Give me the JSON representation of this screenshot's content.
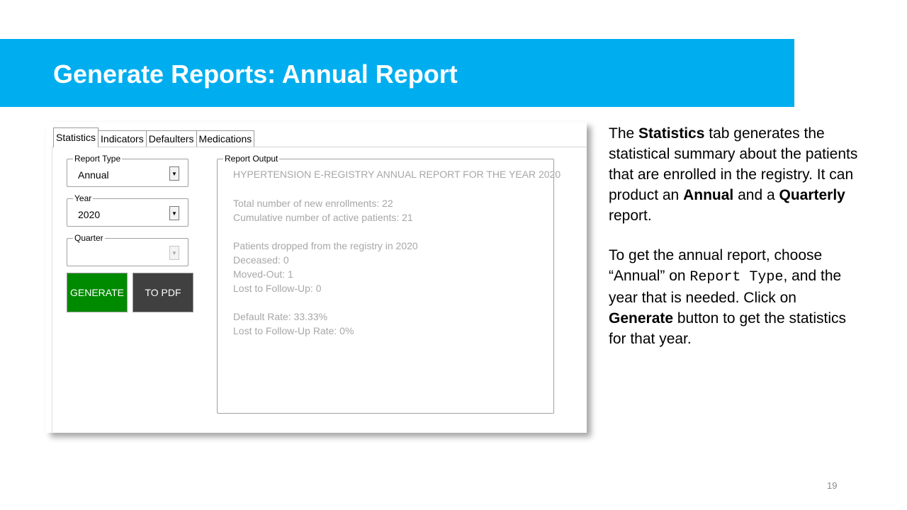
{
  "slide": {
    "title": "Generate Reports: Annual Report",
    "page_number": "19",
    "accent_color": "#00AEEF"
  },
  "app": {
    "tabs": [
      "Statistics",
      "Indicators",
      "Defaulters",
      "Medications"
    ],
    "active_tab": "Statistics",
    "report_type": {
      "label": "Report Type",
      "value": "Annual"
    },
    "year": {
      "label": "Year",
      "value": "2020"
    },
    "quarter": {
      "label": "Quarter",
      "value": ""
    },
    "buttons": {
      "generate": {
        "label": "GENERATE",
        "color": "#008A00"
      },
      "to_pdf": {
        "label": "TO PDF",
        "color": "#404040"
      }
    },
    "report_output": {
      "label": "Report Output",
      "lines": [
        "HYPERTENSION E-REGISTRY ANNUAL REPORT FOR THE YEAR 2020",
        "Total number of new enrollments: 22",
        "Cumulative number of active patients: 21",
        "Patients dropped from the registry in 2020",
        "Deceased: 0",
        "Moved-Out: 1",
        "Lost to Follow-Up: 0",
        "Default Rate: 33.33%",
        "Lost to Follow-Up Rate: 0%"
      ]
    }
  },
  "description": {
    "p1": {
      "t1": "The ",
      "b1": "Statistics",
      "t2": " tab generates the statistical summary about the patients that are enrolled in the registry. It can product an ",
      "b2": "Annual",
      "t3": " and a ",
      "b3": "Quarterly",
      "t4": " report."
    },
    "p2": {
      "t1": "To get the annual report, choose “Annual” on ",
      "code": "Report Type",
      "t2": ", and the year that is needed. Click on ",
      "b1": "Generate",
      "t3": " button to get the statistics for that year."
    }
  }
}
